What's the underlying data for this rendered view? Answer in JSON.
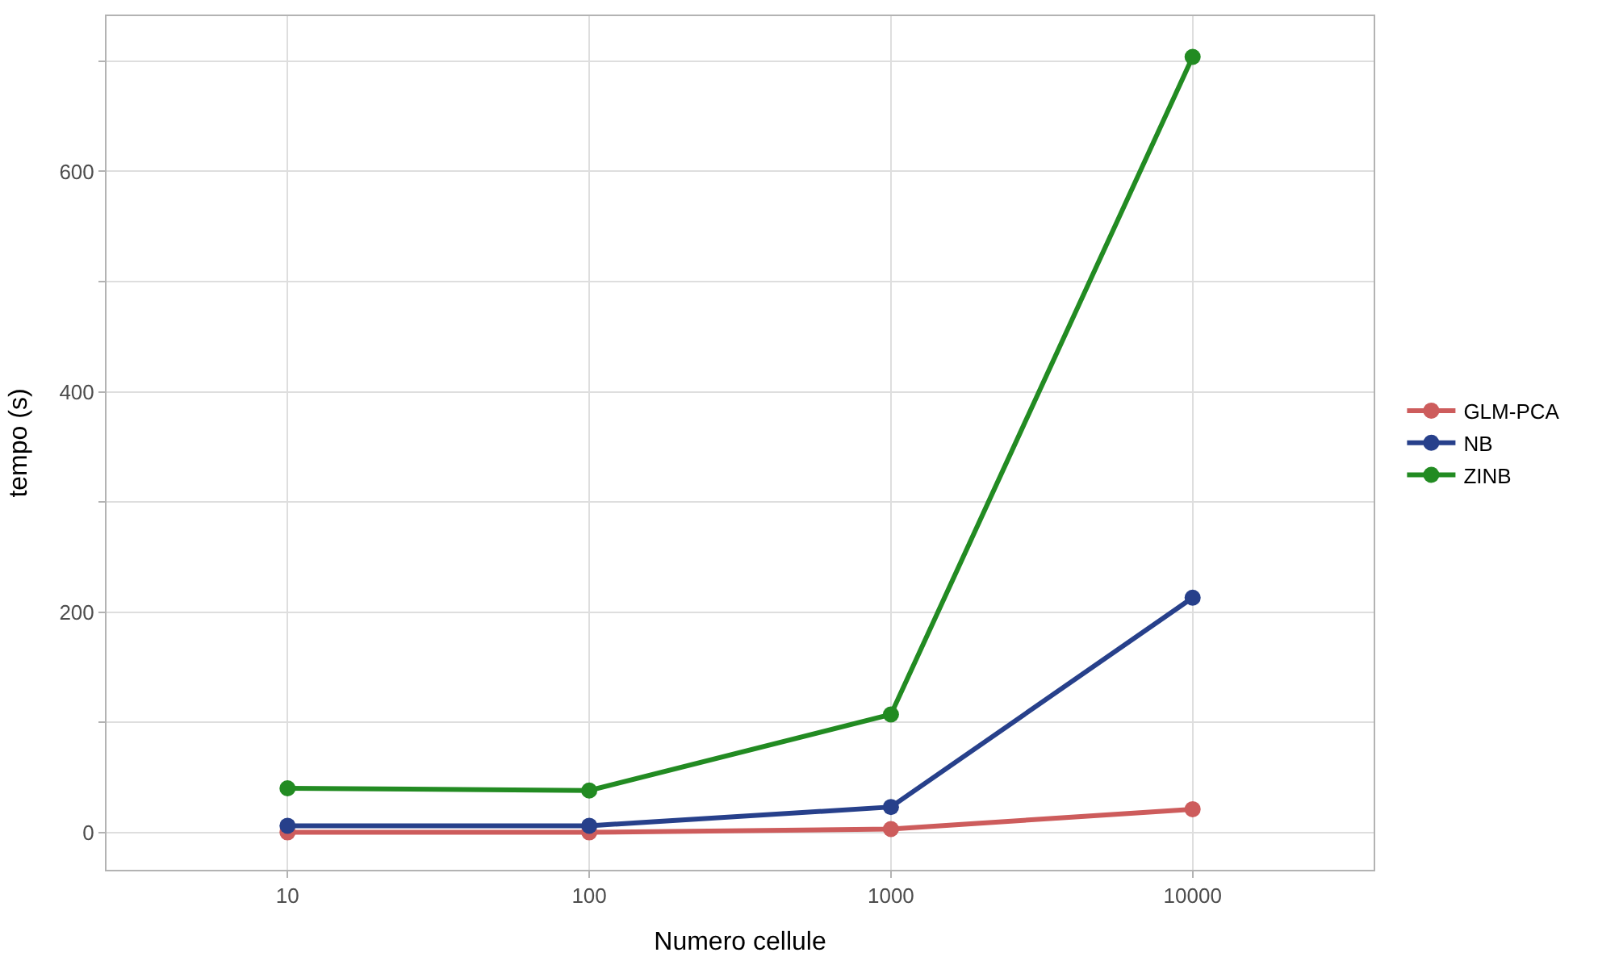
{
  "chart_data": {
    "type": "line",
    "xlabel": "Numero cellule",
    "ylabel": "tempo (s)",
    "categories": [
      "10",
      "100",
      "1000",
      "10000"
    ],
    "series": [
      {
        "name": "GLM-PCA",
        "color": "#cd5c5c",
        "values": [
          0,
          0,
          3,
          21
        ]
      },
      {
        "name": "NB",
        "color": "#27408b",
        "values": [
          6,
          6,
          23,
          213
        ]
      },
      {
        "name": "ZINB",
        "color": "#228b22",
        "values": [
          40,
          38,
          107,
          704
        ]
      }
    ],
    "ylim": [
      -34,
      741
    ],
    "yticks": [
      0,
      {
        "value": 100,
        "label": null
      },
      200,
      {
        "value": 300,
        "label": null
      },
      400,
      {
        "value": 500,
        "label": null
      },
      600,
      {
        "value": 700,
        "label": null
      }
    ],
    "grid": true,
    "legend": "right",
    "marker": "circle",
    "line_style": "solid"
  }
}
